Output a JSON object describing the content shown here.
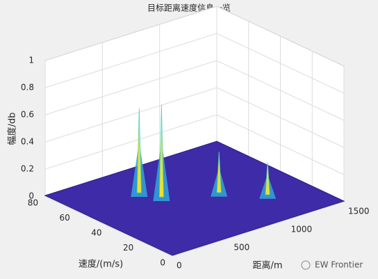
{
  "chart_data": {
    "type": "surface3d",
    "title": "目标距离速度信息一览",
    "xlabel": "距离/m",
    "ylabel": "速度/(m/s)",
    "zlabel": "幅度/db",
    "xlim": [
      0,
      1500
    ],
    "xticks": [
      0,
      500,
      1000,
      1500
    ],
    "ylim": [
      0,
      80
    ],
    "yticks": [
      0,
      20,
      40,
      60,
      80
    ],
    "zlim": [
      0,
      1
    ],
    "zticks": [
      0,
      0.2,
      0.4,
      0.6,
      0.8,
      1
    ],
    "x": [
      530,
      600,
      950,
      1180
    ],
    "y": [
      59,
      50,
      39,
      25
    ],
    "values": [
      0.62,
      0.68,
      0.3,
      0.24
    ],
    "surface_color": "#3e2ba8",
    "peak_color": "#f5e020",
    "grid": true
  },
  "watermark": "EW Frontier"
}
